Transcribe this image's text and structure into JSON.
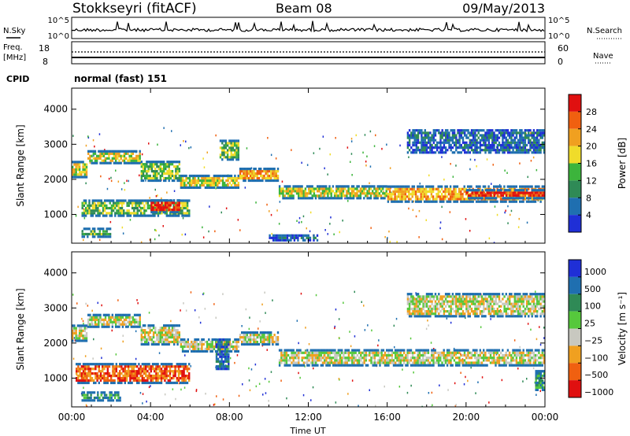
{
  "header": {
    "station": "Stokkseyri (fitACF)",
    "beam": "Beam 08",
    "date": "09/May/2013"
  },
  "top_panels": {
    "nsky_label": "N.Sky",
    "nsky_ticks": [
      "10^5",
      "10^0"
    ],
    "nsearch_ticks": [
      "10^5",
      "10^0"
    ],
    "nsearch_label": "N.Search",
    "freq_label": "Freq.",
    "freq_unit": "[MHz]",
    "freq_ticks": [
      "18",
      "8"
    ],
    "nave_ticks": [
      "60",
      "0"
    ],
    "nave_label": "Nave",
    "cpid_label": "CPID",
    "cpid_value": "normal (fast) 151"
  },
  "colors": {
    "power": [
      "#1f2fd6",
      "#1f6fb0",
      "#2f8a56",
      "#3cb43c",
      "#f0dc2a",
      "#f0a020",
      "#f06010",
      "#e01010"
    ],
    "velocity": [
      "#1f2fd6",
      "#1f6fb0",
      "#2f8a56",
      "#56c83c",
      "#c8c8c0",
      "#f0a020",
      "#f06010",
      "#e01010"
    ]
  },
  "chart_data": [
    {
      "type": "heatmap",
      "panel": "power",
      "xlabel": "",
      "ylabel": "Slant Range [km]",
      "x_ticks": [
        "00:00",
        "04:00",
        "08:00",
        "12:00",
        "16:00",
        "20:00",
        "00:00"
      ],
      "y_ticks": [
        "1000",
        "2000",
        "3000",
        "4000"
      ],
      "xlim": [
        0,
        24
      ],
      "ylim": [
        180,
        4600
      ],
      "colorbar_label": "Power [dB]",
      "colorbar_ticks": [
        "4",
        "8",
        "12",
        "16",
        "20",
        "24",
        "28"
      ],
      "colorbar_range": [
        0,
        32
      ],
      "bands": [
        {
          "t0": 0.0,
          "t1": 0.8,
          "r_lo": 2100,
          "r_hi": 2600,
          "level": 4
        },
        {
          "t0": 0.8,
          "t1": 3.5,
          "r_lo": 2500,
          "r_hi": 2900,
          "level": 4
        },
        {
          "t0": 3.5,
          "t1": 5.5,
          "r_lo": 2000,
          "r_hi": 2600,
          "level": 3
        },
        {
          "t0": 5.5,
          "t1": 8.5,
          "r_lo": 1800,
          "r_hi": 2200,
          "level": 4
        },
        {
          "t0": 8.5,
          "t1": 10.5,
          "r_lo": 2000,
          "r_hi": 2400,
          "level": 5
        },
        {
          "t0": 10.5,
          "t1": 16.0,
          "r_lo": 1500,
          "r_hi": 1900,
          "level": 4
        },
        {
          "t0": 16.0,
          "t1": 24.0,
          "r_lo": 1400,
          "r_hi": 1900,
          "level": 5
        },
        {
          "t0": 20.0,
          "t1": 24.0,
          "r_lo": 1500,
          "r_hi": 1800,
          "level": 7
        },
        {
          "t0": 0.5,
          "t1": 6.0,
          "r_lo": 1000,
          "r_hi": 1500,
          "level": 3
        },
        {
          "t0": 4.0,
          "t1": 5.5,
          "r_lo": 1100,
          "r_hi": 1500,
          "level": 7
        },
        {
          "t0": 0.5,
          "t1": 2.0,
          "r_lo": 400,
          "r_hi": 700,
          "level": 3
        },
        {
          "t0": 7.5,
          "t1": 8.5,
          "r_lo": 2600,
          "r_hi": 3200,
          "level": 3
        },
        {
          "t0": 17.0,
          "t1": 24.0,
          "r_lo": 2800,
          "r_hi": 3500,
          "level": 1
        },
        {
          "t0": 10.0,
          "t1": 12.5,
          "r_lo": 300,
          "r_hi": 500,
          "level": 1
        }
      ]
    },
    {
      "type": "heatmap",
      "panel": "velocity",
      "xlabel": "Time UT",
      "ylabel": "Slant Range [km]",
      "x_ticks": [
        "00:00",
        "04:00",
        "08:00",
        "12:00",
        "16:00",
        "20:00",
        "00:00"
      ],
      "y_ticks": [
        "1000",
        "2000",
        "3000",
        "4000"
      ],
      "xlim": [
        0,
        24
      ],
      "ylim": [
        180,
        4600
      ],
      "colorbar_label": "Velocity [m s⁻¹]",
      "colorbar_ticks": [
        "1000",
        "500",
        "100",
        "25",
        "−25",
        "−100",
        "−500",
        "−1000"
      ],
      "bands": [
        {
          "t0": 0.0,
          "t1": 0.8,
          "r_lo": 2100,
          "r_hi": 2600,
          "level": 4
        },
        {
          "t0": 0.8,
          "t1": 3.5,
          "r_lo": 2500,
          "r_hi": 2900,
          "level": 4
        },
        {
          "t0": 3.5,
          "t1": 5.5,
          "r_lo": 2000,
          "r_hi": 2600,
          "level": 4
        },
        {
          "t0": 5.5,
          "t1": 8.5,
          "r_lo": 1800,
          "r_hi": 2200,
          "level": 4
        },
        {
          "t0": 8.5,
          "t1": 10.5,
          "r_lo": 2000,
          "r_hi": 2400,
          "level": 4
        },
        {
          "t0": 10.5,
          "t1": 24.0,
          "r_lo": 1400,
          "r_hi": 1900,
          "level": 4
        },
        {
          "t0": 0.2,
          "t1": 6.0,
          "r_lo": 900,
          "r_hi": 1500,
          "level": 6
        },
        {
          "t0": 0.5,
          "t1": 2.5,
          "r_lo": 400,
          "r_hi": 700,
          "level": 2
        },
        {
          "t0": 7.3,
          "t1": 8.0,
          "r_lo": 1300,
          "r_hi": 2200,
          "level": 1
        },
        {
          "t0": 17.0,
          "t1": 24.0,
          "r_lo": 2800,
          "r_hi": 3500,
          "level": 4
        },
        {
          "t0": 23.5,
          "t1": 24.0,
          "r_lo": 700,
          "r_hi": 1300,
          "level": 2
        }
      ]
    }
  ]
}
